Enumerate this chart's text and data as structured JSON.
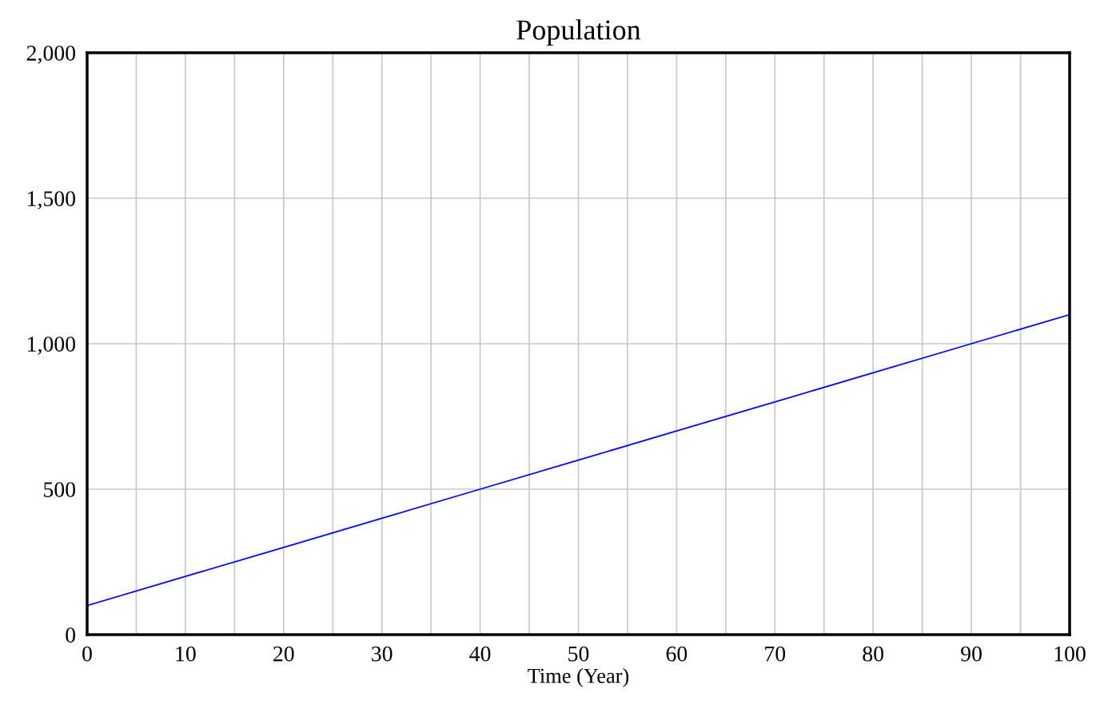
{
  "chart_data": {
    "type": "line",
    "title": "Population",
    "xlabel": "Time (Year)",
    "series": [
      {
        "color": "#0000ff",
        "x": [
          0,
          10,
          20,
          30,
          40,
          50,
          60,
          70,
          80,
          90,
          100
        ],
        "values": [
          100,
          200,
          300,
          400,
          500,
          600,
          700,
          800,
          900,
          1000,
          1100
        ]
      }
    ],
    "xlim": [
      0,
      100
    ],
    "xticks": [
      0,
      {
        "value": 5,
        "label": null
      },
      10,
      {
        "value": 15,
        "label": null
      },
      20,
      {
        "value": 25,
        "label": null
      },
      30,
      {
        "value": 35,
        "label": null
      },
      40,
      {
        "value": 45,
        "label": null
      },
      50,
      {
        "value": 55,
        "label": null
      },
      60,
      {
        "value": 65,
        "label": null
      },
      70,
      {
        "value": 75,
        "label": null
      },
      80,
      {
        "value": 85,
        "label": null
      },
      90,
      {
        "value": 95,
        "label": null
      },
      100
    ],
    "ylim": [
      0,
      2000
    ],
    "yticks": [
      {
        "value": 0,
        "label": "0"
      },
      {
        "value": 500,
        "label": "500"
      },
      {
        "value": 1000,
        "label": "1,000"
      },
      {
        "value": 1500,
        "label": "1,500"
      },
      {
        "value": 2000,
        "label": "2,000"
      }
    ],
    "grid": true,
    "marker": "none",
    "line_style": "solid"
  }
}
